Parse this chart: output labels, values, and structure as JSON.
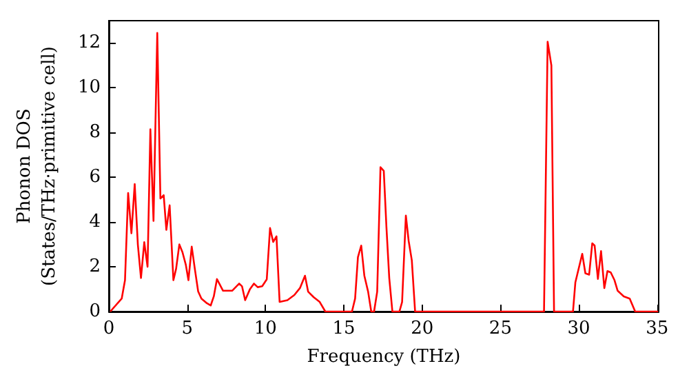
{
  "chart_data": {
    "type": "line",
    "xlabel": "Frequency (THz)",
    "ylabel": "Phonon DOS\n(States/THz·primitive cell)",
    "xlim": [
      0,
      35.1
    ],
    "ylim": [
      0,
      13
    ],
    "xticks": [
      0,
      5,
      10,
      15,
      20,
      25,
      30,
      35
    ],
    "yticks": [
      0,
      2,
      4,
      6,
      8,
      10,
      12
    ],
    "grid": false,
    "marker": "none",
    "line_style": "solid",
    "series": [
      {
        "color": "#ff0000",
        "x": [
          0.09,
          0.82,
          1.03,
          1.23,
          1.44,
          1.65,
          1.85,
          2.05,
          2.26,
          2.47,
          2.65,
          2.85,
          3.09,
          3.29,
          3.5,
          3.67,
          3.88,
          4.12,
          4.29,
          4.5,
          4.7,
          4.91,
          5.08,
          5.29,
          5.49,
          5.7,
          5.91,
          6.26,
          6.5,
          6.7,
          6.9,
          7.29,
          7.87,
          8.32,
          8.5,
          8.7,
          9.0,
          9.26,
          9.5,
          9.79,
          10.08,
          10.29,
          10.49,
          10.7,
          10.9,
          11.4,
          11.84,
          12.2,
          12.52,
          12.72,
          13.08,
          13.46,
          13.82,
          15.52,
          15.72,
          15.9,
          16.11,
          16.31,
          16.55,
          16.75,
          16.93,
          17.13,
          17.34,
          17.55,
          17.72,
          17.9,
          18.1,
          18.55,
          18.72,
          18.96,
          19.14,
          19.34,
          19.55,
          27.78,
          28.01,
          28.25,
          28.42,
          29.63,
          29.78,
          30.22,
          30.42,
          30.66,
          30.86,
          31.01,
          31.22,
          31.42,
          31.63,
          31.83,
          32.04,
          32.28,
          32.48,
          32.87,
          33.25,
          33.6,
          35.07
        ],
        "values": [
          0.0,
          0.58,
          1.4,
          5.3,
          3.5,
          5.7,
          3.0,
          1.5,
          3.1,
          2.0,
          8.15,
          4.05,
          12.45,
          5.05,
          5.2,
          3.65,
          4.75,
          1.4,
          1.9,
          3.0,
          2.65,
          2.1,
          1.4,
          2.9,
          1.9,
          0.9,
          0.58,
          0.37,
          0.27,
          0.68,
          1.45,
          0.93,
          0.93,
          1.25,
          1.13,
          0.51,
          0.99,
          1.25,
          1.09,
          1.13,
          1.44,
          3.73,
          3.11,
          3.36,
          0.43,
          0.51,
          0.74,
          1.05,
          1.6,
          0.89,
          0.64,
          0.43,
          0.0,
          0.0,
          0.58,
          2.43,
          2.95,
          1.6,
          0.89,
          0.0,
          0.0,
          0.89,
          6.45,
          6.29,
          3.77,
          1.5,
          0.0,
          0.0,
          0.43,
          4.29,
          3.15,
          2.29,
          0.0,
          0.0,
          12.06,
          11.0,
          0.0,
          0.0,
          1.3,
          2.58,
          1.71,
          1.65,
          3.05,
          2.95,
          1.46,
          2.7,
          1.05,
          1.81,
          1.75,
          1.4,
          0.93,
          0.68,
          0.58,
          0.0,
          0.0
        ]
      }
    ]
  }
}
